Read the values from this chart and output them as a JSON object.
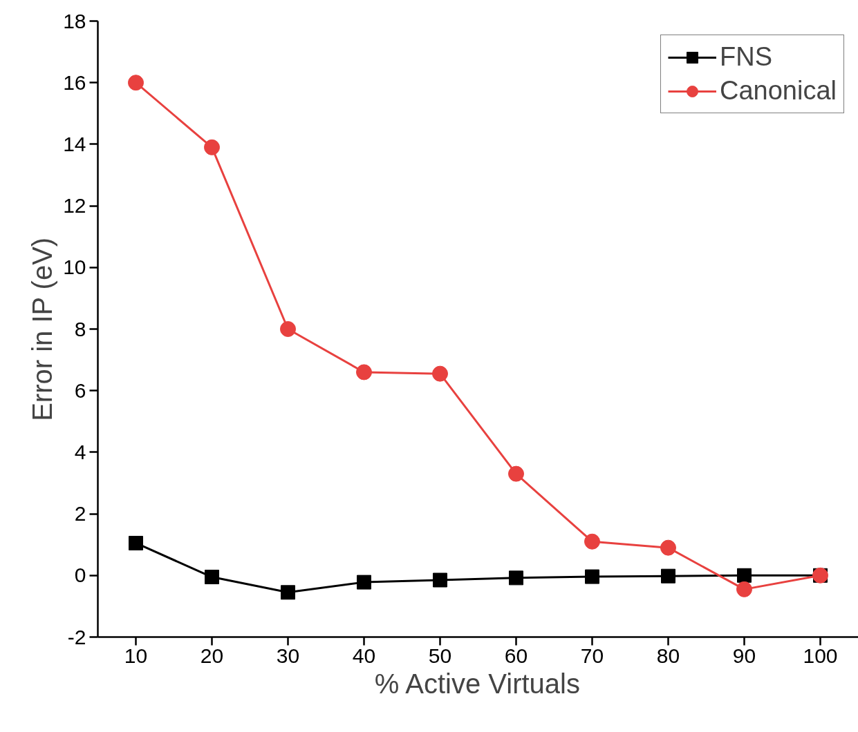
{
  "chart_data": {
    "type": "line",
    "xlabel": "% Active Virtuals",
    "ylabel": "Error in IP (eV)",
    "x": [
      10,
      20,
      30,
      40,
      50,
      60,
      70,
      80,
      90,
      100
    ],
    "series": [
      {
        "name": "FNS",
        "color": "#000000",
        "marker": "square",
        "values": [
          1.05,
          -0.05,
          -0.55,
          -0.22,
          -0.15,
          -0.08,
          -0.04,
          -0.02,
          0,
          0
        ]
      },
      {
        "name": "Canonical",
        "color": "#e8413f",
        "marker": "circle",
        "values": [
          16.0,
          13.9,
          8.0,
          6.6,
          6.55,
          3.3,
          1.1,
          0.9,
          -0.45,
          0
        ]
      }
    ],
    "xlim": [
      5,
      105
    ],
    "xticks": [
      10,
      20,
      30,
      40,
      50,
      60,
      70,
      80,
      90,
      100
    ],
    "ylim": [
      -2,
      18
    ],
    "yticks": [
      -2,
      0,
      2,
      4,
      6,
      8,
      10,
      12,
      14,
      16,
      18
    ],
    "grid": false,
    "legend": "top right",
    "line_style": "solid"
  }
}
